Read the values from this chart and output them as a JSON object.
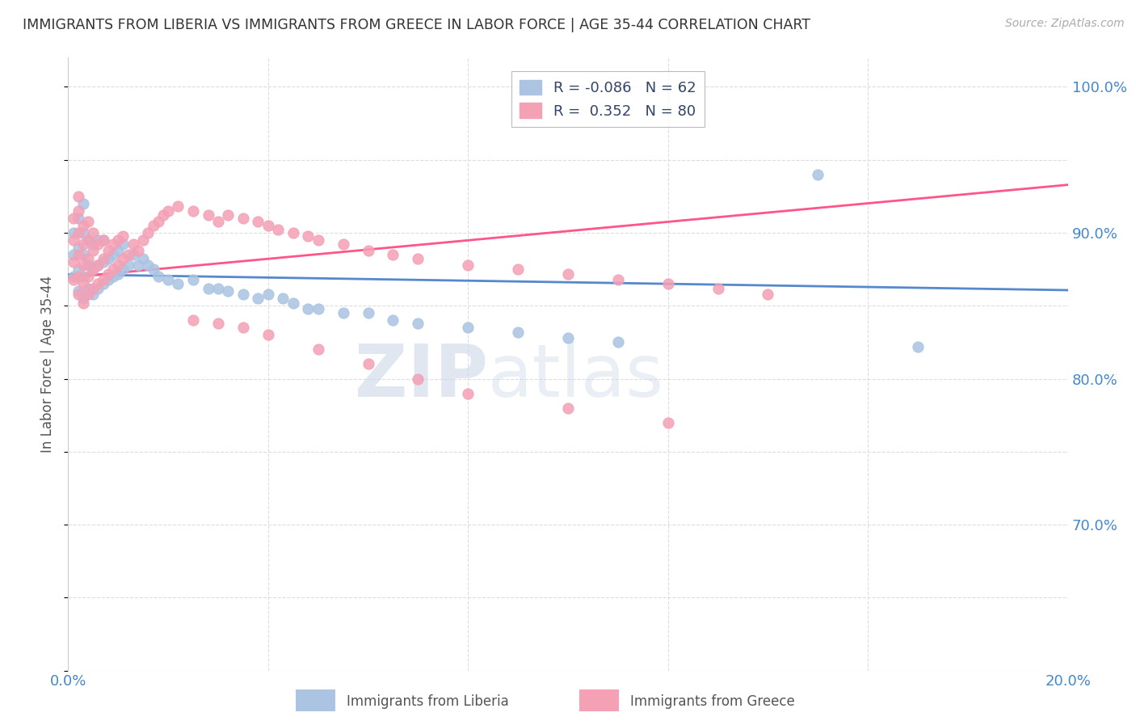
{
  "title": "IMMIGRANTS FROM LIBERIA VS IMMIGRANTS FROM GREECE IN LABOR FORCE | AGE 35-44 CORRELATION CHART",
  "source": "Source: ZipAtlas.com",
  "ylabel": "In Labor Force | Age 35-44",
  "xlim": [
    0.0,
    0.2
  ],
  "ylim": [
    0.6,
    1.02
  ],
  "xticks": [
    0.0,
    0.04,
    0.08,
    0.12,
    0.16,
    0.2
  ],
  "xticklabels": [
    "0.0%",
    "",
    "",
    "",
    "",
    "20.0%"
  ],
  "yticks": [
    0.6,
    0.65,
    0.7,
    0.75,
    0.8,
    0.85,
    0.9,
    0.95,
    1.0
  ],
  "yticklabels_right": [
    "",
    "",
    "70.0%",
    "",
    "80.0%",
    "",
    "90.0%",
    "",
    "100.0%"
  ],
  "liberia_color": "#aac4e2",
  "greece_color": "#f4a0b5",
  "liberia_line_color": "#5588cc",
  "greece_line_color": "#ff5588",
  "liberia_R": -0.086,
  "liberia_N": 62,
  "greece_R": 0.352,
  "greece_N": 80,
  "legend_liberia_label": "Immigrants from Liberia",
  "legend_greece_label": "Immigrants from Greece",
  "background_color": "#ffffff",
  "grid_color": "#dddddd",
  "title_color": "#333333",
  "axis_color": "#4488cc",
  "liberia_scatter_x": [
    0.001,
    0.001,
    0.001,
    0.002,
    0.002,
    0.002,
    0.002,
    0.003,
    0.003,
    0.003,
    0.003,
    0.003,
    0.004,
    0.004,
    0.004,
    0.005,
    0.005,
    0.005,
    0.006,
    0.006,
    0.006,
    0.007,
    0.007,
    0.007,
    0.008,
    0.008,
    0.009,
    0.009,
    0.01,
    0.01,
    0.011,
    0.011,
    0.012,
    0.013,
    0.014,
    0.015,
    0.016,
    0.017,
    0.018,
    0.02,
    0.022,
    0.025,
    0.028,
    0.03,
    0.032,
    0.035,
    0.038,
    0.04,
    0.043,
    0.045,
    0.048,
    0.05,
    0.055,
    0.06,
    0.065,
    0.07,
    0.08,
    0.09,
    0.1,
    0.11,
    0.15,
    0.17
  ],
  "liberia_scatter_y": [
    0.87,
    0.885,
    0.9,
    0.86,
    0.875,
    0.89,
    0.91,
    0.855,
    0.87,
    0.885,
    0.9,
    0.92,
    0.862,
    0.878,
    0.895,
    0.858,
    0.875,
    0.892,
    0.862,
    0.878,
    0.895,
    0.865,
    0.88,
    0.895,
    0.868,
    0.882,
    0.87,
    0.885,
    0.872,
    0.888,
    0.875,
    0.892,
    0.878,
    0.885,
    0.878,
    0.882,
    0.878,
    0.875,
    0.87,
    0.868,
    0.865,
    0.868,
    0.862,
    0.862,
    0.86,
    0.858,
    0.855,
    0.858,
    0.855,
    0.852,
    0.848,
    0.848,
    0.845,
    0.845,
    0.84,
    0.838,
    0.835,
    0.832,
    0.828,
    0.825,
    0.94,
    0.822
  ],
  "greece_scatter_x": [
    0.001,
    0.001,
    0.001,
    0.001,
    0.002,
    0.002,
    0.002,
    0.002,
    0.002,
    0.002,
    0.003,
    0.003,
    0.003,
    0.003,
    0.003,
    0.004,
    0.004,
    0.004,
    0.004,
    0.004,
    0.005,
    0.005,
    0.005,
    0.005,
    0.006,
    0.006,
    0.006,
    0.007,
    0.007,
    0.007,
    0.008,
    0.008,
    0.009,
    0.009,
    0.01,
    0.01,
    0.011,
    0.011,
    0.012,
    0.013,
    0.014,
    0.015,
    0.016,
    0.017,
    0.018,
    0.019,
    0.02,
    0.022,
    0.025,
    0.028,
    0.03,
    0.032,
    0.035,
    0.038,
    0.04,
    0.042,
    0.045,
    0.048,
    0.05,
    0.055,
    0.06,
    0.065,
    0.07,
    0.08,
    0.09,
    0.1,
    0.11,
    0.12,
    0.13,
    0.14,
    0.025,
    0.03,
    0.035,
    0.04,
    0.05,
    0.06,
    0.07,
    0.08,
    0.1,
    0.12
  ],
  "greece_scatter_y": [
    0.868,
    0.88,
    0.895,
    0.91,
    0.858,
    0.87,
    0.885,
    0.9,
    0.915,
    0.925,
    0.852,
    0.865,
    0.878,
    0.892,
    0.905,
    0.858,
    0.87,
    0.882,
    0.895,
    0.908,
    0.862,
    0.875,
    0.888,
    0.9,
    0.865,
    0.878,
    0.892,
    0.868,
    0.882,
    0.895,
    0.872,
    0.888,
    0.875,
    0.892,
    0.878,
    0.895,
    0.882,
    0.898,
    0.885,
    0.892,
    0.888,
    0.895,
    0.9,
    0.905,
    0.908,
    0.912,
    0.915,
    0.918,
    0.915,
    0.912,
    0.908,
    0.912,
    0.91,
    0.908,
    0.905,
    0.902,
    0.9,
    0.898,
    0.895,
    0.892,
    0.888,
    0.885,
    0.882,
    0.878,
    0.875,
    0.872,
    0.868,
    0.865,
    0.862,
    0.858,
    0.84,
    0.838,
    0.835,
    0.83,
    0.82,
    0.81,
    0.8,
    0.79,
    0.78,
    0.77
  ]
}
